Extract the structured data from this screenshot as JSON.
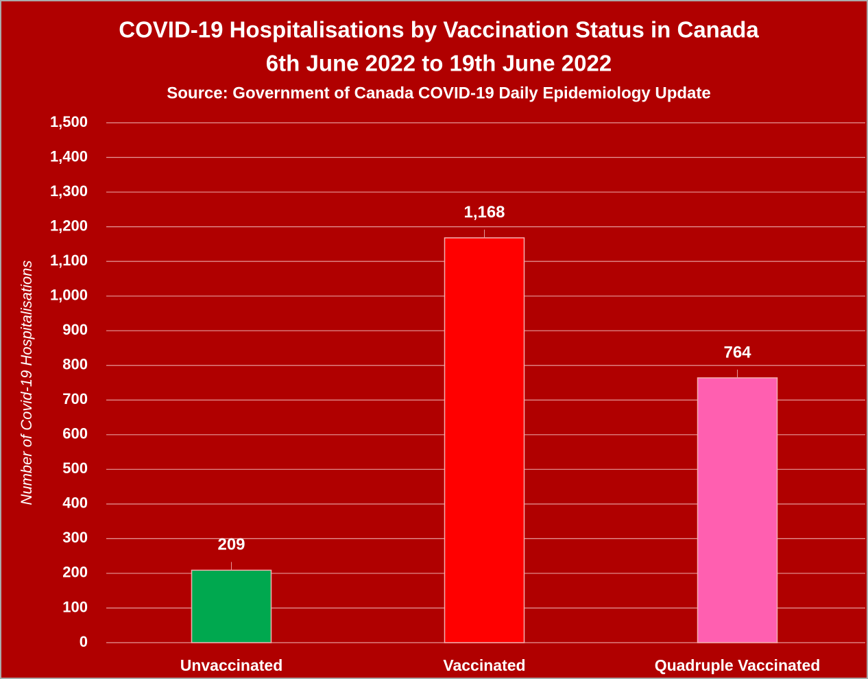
{
  "chart_data": {
    "type": "bar",
    "title": [
      "COVID-19 Hospitalisations by Vaccination Status in Canada",
      "6th June 2022 to 19th June 2022"
    ],
    "subtitle": "Source: Government of Canada COVID-19 Daily Epidemiology Update",
    "y_axis_label": "Number of Covid-19 Hospitalisations",
    "categories": [
      "Unvaccinated",
      "Vaccinated",
      "Quadruple Vaccinated"
    ],
    "values": [
      209,
      1168,
      764
    ],
    "value_labels": [
      "209",
      "1,168",
      "764"
    ],
    "colors": [
      "#00a84f",
      "#ff0000",
      "#ff5fb0"
    ],
    "ylim": [
      0,
      1500
    ],
    "yticks": [
      0,
      100,
      200,
      300,
      400,
      500,
      600,
      700,
      800,
      900,
      {
        "value": 1000,
        "label": "1,000"
      },
      {
        "value": 1100,
        "label": "1,100"
      },
      {
        "value": 1200,
        "label": "1,200"
      },
      {
        "value": 1300,
        "label": "1,300"
      },
      {
        "value": 1400,
        "label": "1,400"
      },
      {
        "value": 1500,
        "label": "1,500"
      }
    ],
    "grid": true
  }
}
